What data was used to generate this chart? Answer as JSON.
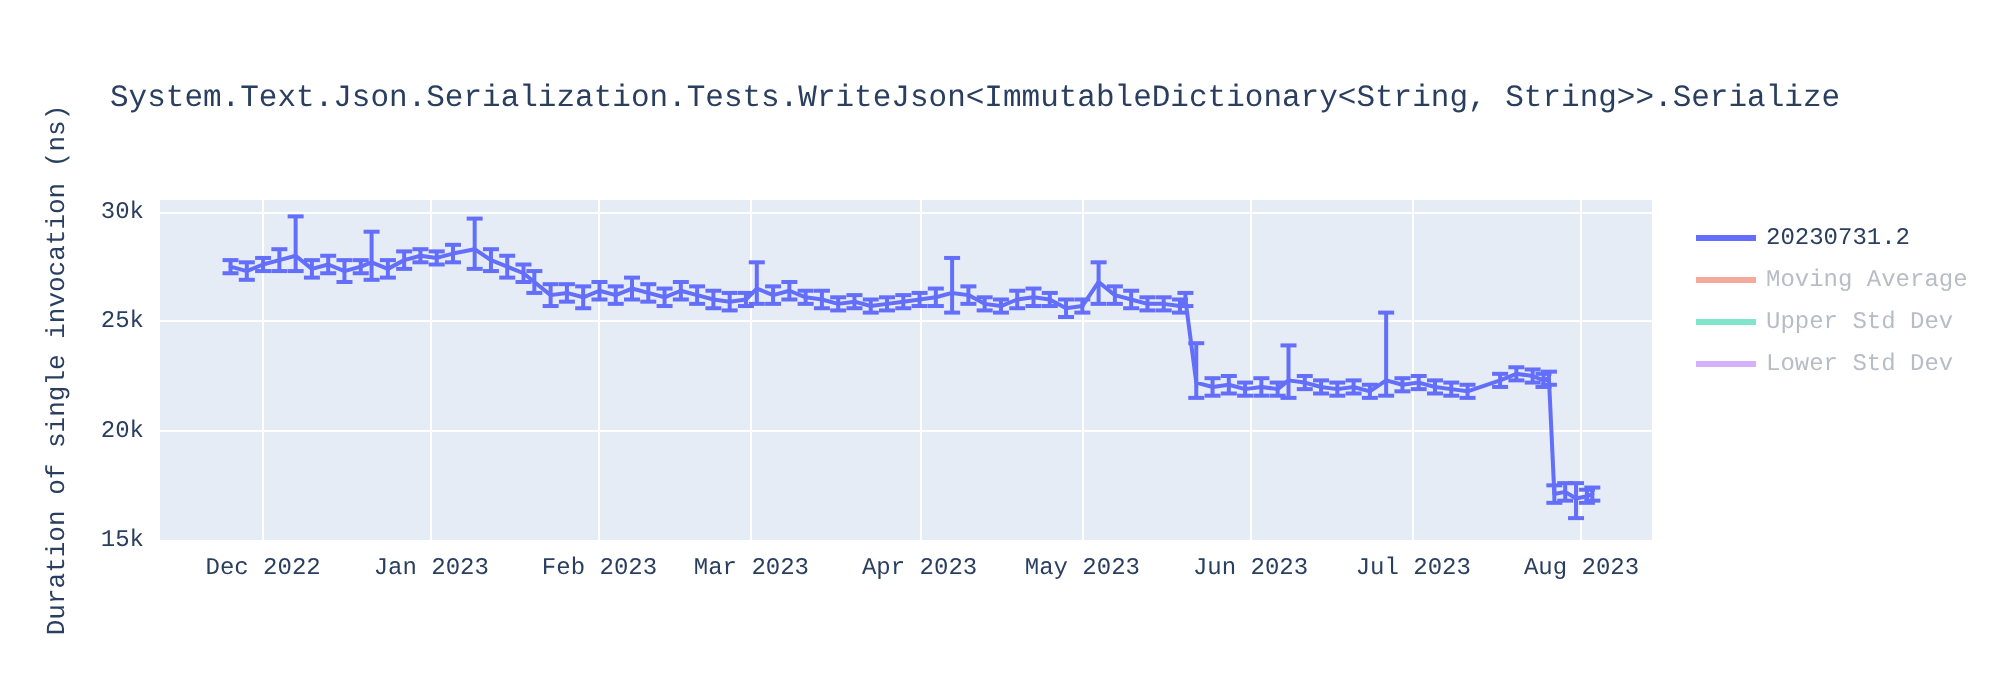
{
  "chart_data": {
    "type": "line",
    "title": "System.Text.Json.Serialization.Tests.WriteJson<ImmutableDictionary<String, String>>.Serialize",
    "ylabel": "Duration of single invocation (ns)",
    "x": [
      "2022-11-25",
      "2022-11-28",
      "2022-12-01",
      "2022-12-04",
      "2022-12-07",
      "2022-12-10",
      "2022-12-13",
      "2022-12-16",
      "2022-12-19",
      "2022-12-21",
      "2022-12-24",
      "2022-12-27",
      "2022-12-30",
      "2023-01-02",
      "2023-01-05",
      "2023-01-09",
      "2023-01-12",
      "2023-01-15",
      "2023-01-18",
      "2023-01-20",
      "2023-01-23",
      "2023-01-26",
      "2023-01-29",
      "2023-02-01",
      "2023-02-04",
      "2023-02-07",
      "2023-02-10",
      "2023-02-13",
      "2023-02-16",
      "2023-02-19",
      "2023-02-22",
      "2023-02-25",
      "2023-02-28",
      "2023-03-02",
      "2023-03-05",
      "2023-03-08",
      "2023-03-11",
      "2023-03-14",
      "2023-03-17",
      "2023-03-20",
      "2023-03-23",
      "2023-03-26",
      "2023-03-29",
      "2023-04-01",
      "2023-04-04",
      "2023-04-07",
      "2023-04-10",
      "2023-04-13",
      "2023-04-16",
      "2023-04-19",
      "2023-04-22",
      "2023-04-25",
      "2023-04-28",
      "2023-05-01",
      "2023-05-04",
      "2023-05-07",
      "2023-05-10",
      "2023-05-13",
      "2023-05-16",
      "2023-05-19",
      "2023-05-20",
      "2023-05-22",
      "2023-05-25",
      "2023-05-28",
      "2023-05-31",
      "2023-06-03",
      "2023-06-06",
      "2023-06-08",
      "2023-06-11",
      "2023-06-14",
      "2023-06-17",
      "2023-06-20",
      "2023-06-23",
      "2023-06-26",
      "2023-06-29",
      "2023-07-02",
      "2023-07-05",
      "2023-07-08",
      "2023-07-11",
      "2023-07-17",
      "2023-07-20",
      "2023-07-23",
      "2023-07-25",
      "2023-07-26",
      "2023-07-27",
      "2023-07-29",
      "2023-07-31",
      "2023-08-02",
      "2023-08-03"
    ],
    "series": [
      {
        "name": "20230731.2",
        "color": "#636efa",
        "values": [
          27500,
          27300,
          27600,
          27800,
          28000,
          27400,
          27600,
          27300,
          27500,
          27700,
          27400,
          27800,
          28000,
          27900,
          28100,
          28300,
          27800,
          27500,
          27200,
          26800,
          26200,
          26300,
          26100,
          26400,
          26200,
          26500,
          26300,
          26100,
          26400,
          26200,
          26000,
          25900,
          26000,
          26500,
          26200,
          26400,
          26100,
          26000,
          25800,
          25900,
          25700,
          25800,
          25900,
          26000,
          26100,
          26300,
          26200,
          25800,
          25700,
          26000,
          26100,
          26000,
          25600,
          25700,
          26800,
          26200,
          26000,
          25800,
          25800,
          25700,
          26000,
          22200,
          22000,
          22100,
          21900,
          22000,
          21900,
          22300,
          22200,
          22000,
          21900,
          22000,
          21800,
          22300,
          22100,
          22200,
          22000,
          21900,
          21800,
          22300,
          22600,
          22500,
          22300,
          22400,
          17100,
          17200,
          16900,
          17000,
          17100
        ],
        "errors": [
          300,
          400,
          300,
          500,
          [
            27300,
            29800
          ],
          400,
          400,
          500,
          300,
          [
            26900,
            29100
          ],
          400,
          400,
          300,
          300,
          400,
          [
            27400,
            29700
          ],
          500,
          500,
          400,
          500,
          500,
          400,
          500,
          400,
          400,
          500,
          400,
          400,
          400,
          400,
          400,
          400,
          300,
          [
            25800,
            27700
          ],
          400,
          400,
          300,
          400,
          300,
          300,
          300,
          300,
          300,
          300,
          400,
          [
            25400,
            27900
          ],
          400,
          300,
          300,
          400,
          400,
          300,
          400,
          300,
          [
            25800,
            27700
          ],
          400,
          400,
          300,
          300,
          300,
          300,
          [
            21500,
            24000
          ],
          400,
          400,
          300,
          400,
          300,
          [
            21500,
            23900
          ],
          300,
          300,
          300,
          300,
          300,
          [
            21600,
            25400
          ],
          300,
          300,
          300,
          300,
          300,
          300,
          300,
          300,
          300,
          300,
          400,
          400,
          [
            16000,
            17600
          ],
          300,
          300
        ]
      },
      {
        "name": "Moving Average",
        "color": "#f5a99c",
        "values": [
          null,
          null,
          null,
          null,
          null,
          null,
          null,
          null,
          null,
          null,
          null,
          null,
          null,
          null,
          null,
          null,
          null,
          null,
          null,
          null,
          null,
          null,
          null,
          null,
          null,
          null,
          null,
          null,
          null,
          null,
          null,
          null,
          null,
          null,
          null,
          null,
          null,
          null,
          null,
          null,
          null,
          null,
          null,
          null,
          null,
          null,
          null,
          null,
          null,
          null,
          null,
          null,
          null,
          null,
          null,
          null,
          null,
          null,
          null,
          null,
          null,
          null,
          null,
          null,
          null,
          null,
          null,
          null,
          null,
          null,
          null,
          null,
          null,
          null,
          null,
          null,
          null,
          null,
          null,
          null,
          null,
          null,
          null,
          null,
          null,
          null,
          null,
          null,
          null
        ]
      },
      {
        "name": "Upper Std Dev",
        "color": "#80e5ca",
        "values": [
          null,
          null,
          null,
          null,
          null,
          null,
          null,
          null,
          null,
          null,
          null,
          null,
          null,
          null,
          null,
          null,
          null,
          null,
          null,
          null,
          null,
          null,
          null,
          null,
          null,
          null,
          null,
          null,
          null,
          null,
          null,
          null,
          null,
          null,
          null,
          null,
          null,
          null,
          null,
          null,
          null,
          null,
          null,
          null,
          null,
          null,
          null,
          null,
          null,
          null,
          null,
          null,
          null,
          null,
          null,
          null,
          null,
          null,
          null,
          null,
          null,
          null,
          null,
          null,
          null,
          null,
          null,
          null,
          null,
          null,
          null,
          null,
          null,
          null,
          null,
          null,
          null,
          null,
          null,
          null,
          null,
          null,
          null,
          null,
          null,
          null,
          null,
          null,
          null
        ]
      },
      {
        "name": "Lower Std Dev",
        "color": "#d5b1fc",
        "values": [
          null,
          null,
          null,
          null,
          null,
          null,
          null,
          null,
          null,
          null,
          null,
          null,
          null,
          null,
          null,
          null,
          null,
          null,
          null,
          null,
          null,
          null,
          null,
          null,
          null,
          null,
          null,
          null,
          null,
          null,
          null,
          null,
          null,
          null,
          null,
          null,
          null,
          null,
          null,
          null,
          null,
          null,
          null,
          null,
          null,
          null,
          null,
          null,
          null,
          null,
          null,
          null,
          null,
          null,
          null,
          null,
          null,
          null,
          null,
          null,
          null,
          null,
          null,
          null,
          null,
          null,
          null,
          null,
          null,
          null,
          null,
          null,
          null,
          null,
          null,
          null,
          null,
          null,
          null,
          null,
          null,
          null,
          null,
          null,
          null,
          null,
          null,
          null,
          null
        ]
      }
    ],
    "xlim": [
      "2022-11-12",
      "2023-08-14"
    ],
    "xticks": [
      {
        "value": "2022-12-01",
        "label": "Dec 2022"
      },
      {
        "value": "2023-01-01",
        "label": "Jan 2023"
      },
      {
        "value": "2023-02-01",
        "label": "Feb 2023"
      },
      {
        "value": "2023-03-01",
        "label": "Mar 2023"
      },
      {
        "value": "2023-04-01",
        "label": "Apr 2023"
      },
      {
        "value": "2023-05-01",
        "label": "May 2023"
      },
      {
        "value": "2023-06-01",
        "label": "Jun 2023"
      },
      {
        "value": "2023-07-01",
        "label": "Jul 2023"
      },
      {
        "value": "2023-08-01",
        "label": "Aug 2023"
      }
    ],
    "ylim": [
      15000,
      30550
    ],
    "yticks": [
      {
        "value": 15000,
        "label": "15k"
      },
      {
        "value": 20000,
        "label": "20k"
      },
      {
        "value": 25000,
        "label": "25k"
      },
      {
        "value": 30000,
        "label": "30k"
      }
    ],
    "grid": true,
    "legend": "top right"
  }
}
